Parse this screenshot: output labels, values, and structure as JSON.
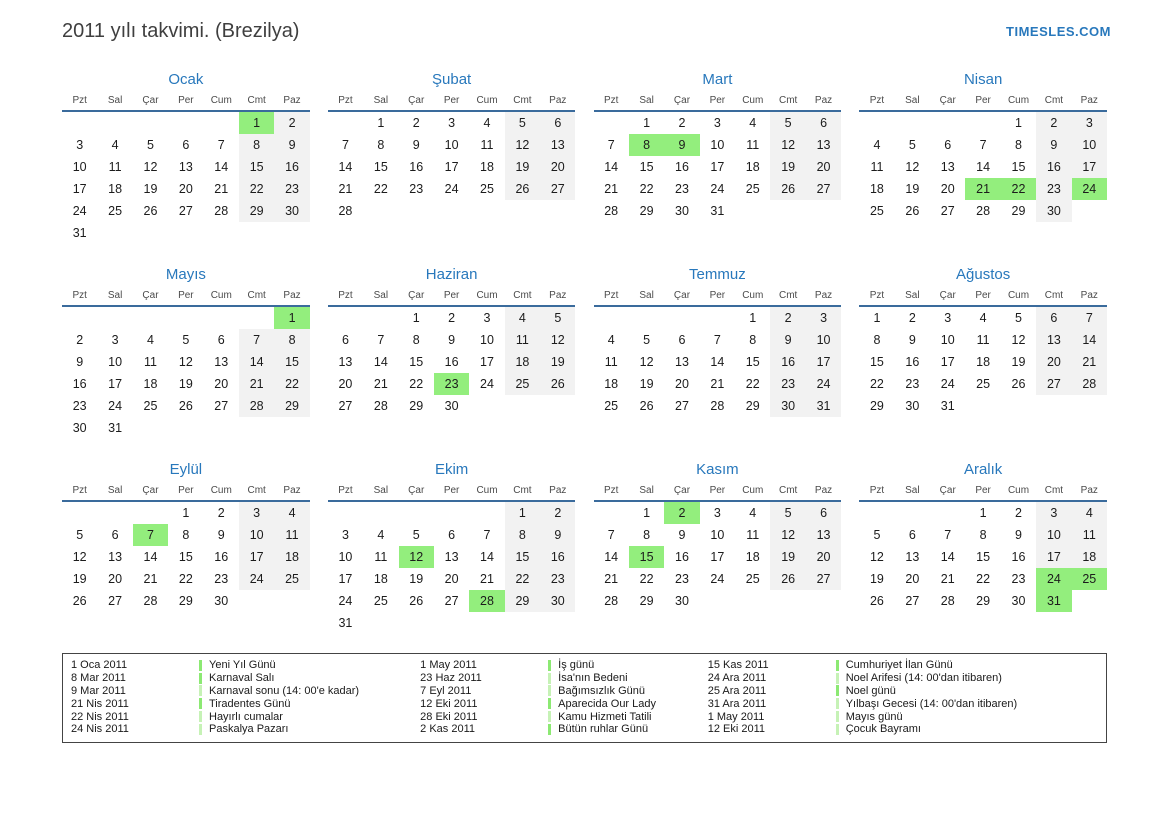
{
  "header": {
    "title": "2011 yılı takvimi. (Brezilya)",
    "site": "TIMESLES.COM"
  },
  "colors": {
    "accent_blue": "#2878bc",
    "rule_blue": "#3a6b9c",
    "holiday_green": "#93ee7d",
    "weekend_gray": "#f2f2f2",
    "legend_bar_bright": "#8ce973",
    "legend_bar_pale": "#c6f2b6"
  },
  "calendar": {
    "weekdays": [
      "Pzt",
      "Sal",
      "Çar",
      "Per",
      "Cum",
      "Cmt",
      "Paz"
    ],
    "months": [
      {
        "id": "ocak",
        "name": "Ocak",
        "start": 5,
        "days": 31,
        "holidays": [
          1
        ]
      },
      {
        "id": "subat",
        "name": "Şubat",
        "start": 1,
        "days": 28,
        "holidays": []
      },
      {
        "id": "mart",
        "name": "Mart",
        "start": 1,
        "days": 31,
        "holidays": [
          8,
          9
        ]
      },
      {
        "id": "nisan",
        "name": "Nisan",
        "start": 4,
        "days": 30,
        "holidays": [
          21,
          22,
          24
        ]
      },
      {
        "id": "mayis",
        "name": "Mayıs",
        "start": 6,
        "days": 31,
        "holidays": [
          1
        ]
      },
      {
        "id": "haziran",
        "name": "Haziran",
        "start": 2,
        "days": 30,
        "holidays": [
          23
        ]
      },
      {
        "id": "temmuz",
        "name": "Temmuz",
        "start": 4,
        "days": 31,
        "holidays": []
      },
      {
        "id": "agustos",
        "name": "Ağustos",
        "start": 0,
        "days": 31,
        "holidays": []
      },
      {
        "id": "eylul",
        "name": "Eylül",
        "start": 3,
        "days": 30,
        "holidays": [
          7
        ]
      },
      {
        "id": "ekim",
        "name": "Ekim",
        "start": 5,
        "days": 31,
        "holidays": [
          12,
          28
        ]
      },
      {
        "id": "kasim",
        "name": "Kasım",
        "start": 1,
        "days": 30,
        "holidays": [
          2,
          15
        ]
      },
      {
        "id": "aralik",
        "name": "Aralık",
        "start": 3,
        "days": 31,
        "holidays": [
          24,
          25,
          31
        ]
      }
    ]
  },
  "legend": {
    "columns": [
      [
        {
          "date": "1 Oca 2011",
          "name": "Yeni Yıl Günü",
          "bar": "bright"
        },
        {
          "date": "8 Mar 2011",
          "name": "Karnaval Salı",
          "bar": "bright"
        },
        {
          "date": "9 Mar 2011",
          "name": "Karnaval sonu (14: 00'e kadar)",
          "bar": "pale"
        },
        {
          "date": "21 Nis 2011",
          "name": "Tiradentes Günü",
          "bar": "bright"
        },
        {
          "date": "22 Nis 2011",
          "name": "Hayırlı cumalar",
          "bar": "pale"
        },
        {
          "date": "24 Nis 2011",
          "name": "Paskalya Pazarı",
          "bar": "pale"
        }
      ],
      [
        {
          "date": "1 May 2011",
          "name": "İş günü",
          "bar": "bright"
        },
        {
          "date": "23 Haz 2011",
          "name": "İsa'nın Bedeni",
          "bar": "pale"
        },
        {
          "date": "7 Eyl 2011",
          "name": "Bağımsızlık Günü",
          "bar": "pale"
        },
        {
          "date": "12 Eki 2011",
          "name": "Aparecida Our Lady",
          "bar": "bright"
        },
        {
          "date": "28 Eki 2011",
          "name": "Kamu Hizmeti Tatili",
          "bar": "pale"
        },
        {
          "date": "2 Kas 2011",
          "name": "Bütün ruhlar Günü",
          "bar": "bright"
        }
      ],
      [
        {
          "date": "15 Kas 2011",
          "name": "Cumhuriyet İlan Günü",
          "bar": "bright"
        },
        {
          "date": "24 Ara 2011",
          "name": "Noel Arifesi (14: 00'dan itibaren)",
          "bar": "pale"
        },
        {
          "date": "25 Ara 2011",
          "name": "Noel günü",
          "bar": "bright"
        },
        {
          "date": "31 Ara 2011",
          "name": "Yılbaşı Gecesi (14: 00'dan itibaren)",
          "bar": "pale"
        },
        {
          "date": "1 May 2011",
          "name": "Mayıs günü",
          "bar": "pale"
        },
        {
          "date": "12 Eki 2011",
          "name": "Çocuk Bayramı",
          "bar": "pale"
        }
      ]
    ]
  }
}
